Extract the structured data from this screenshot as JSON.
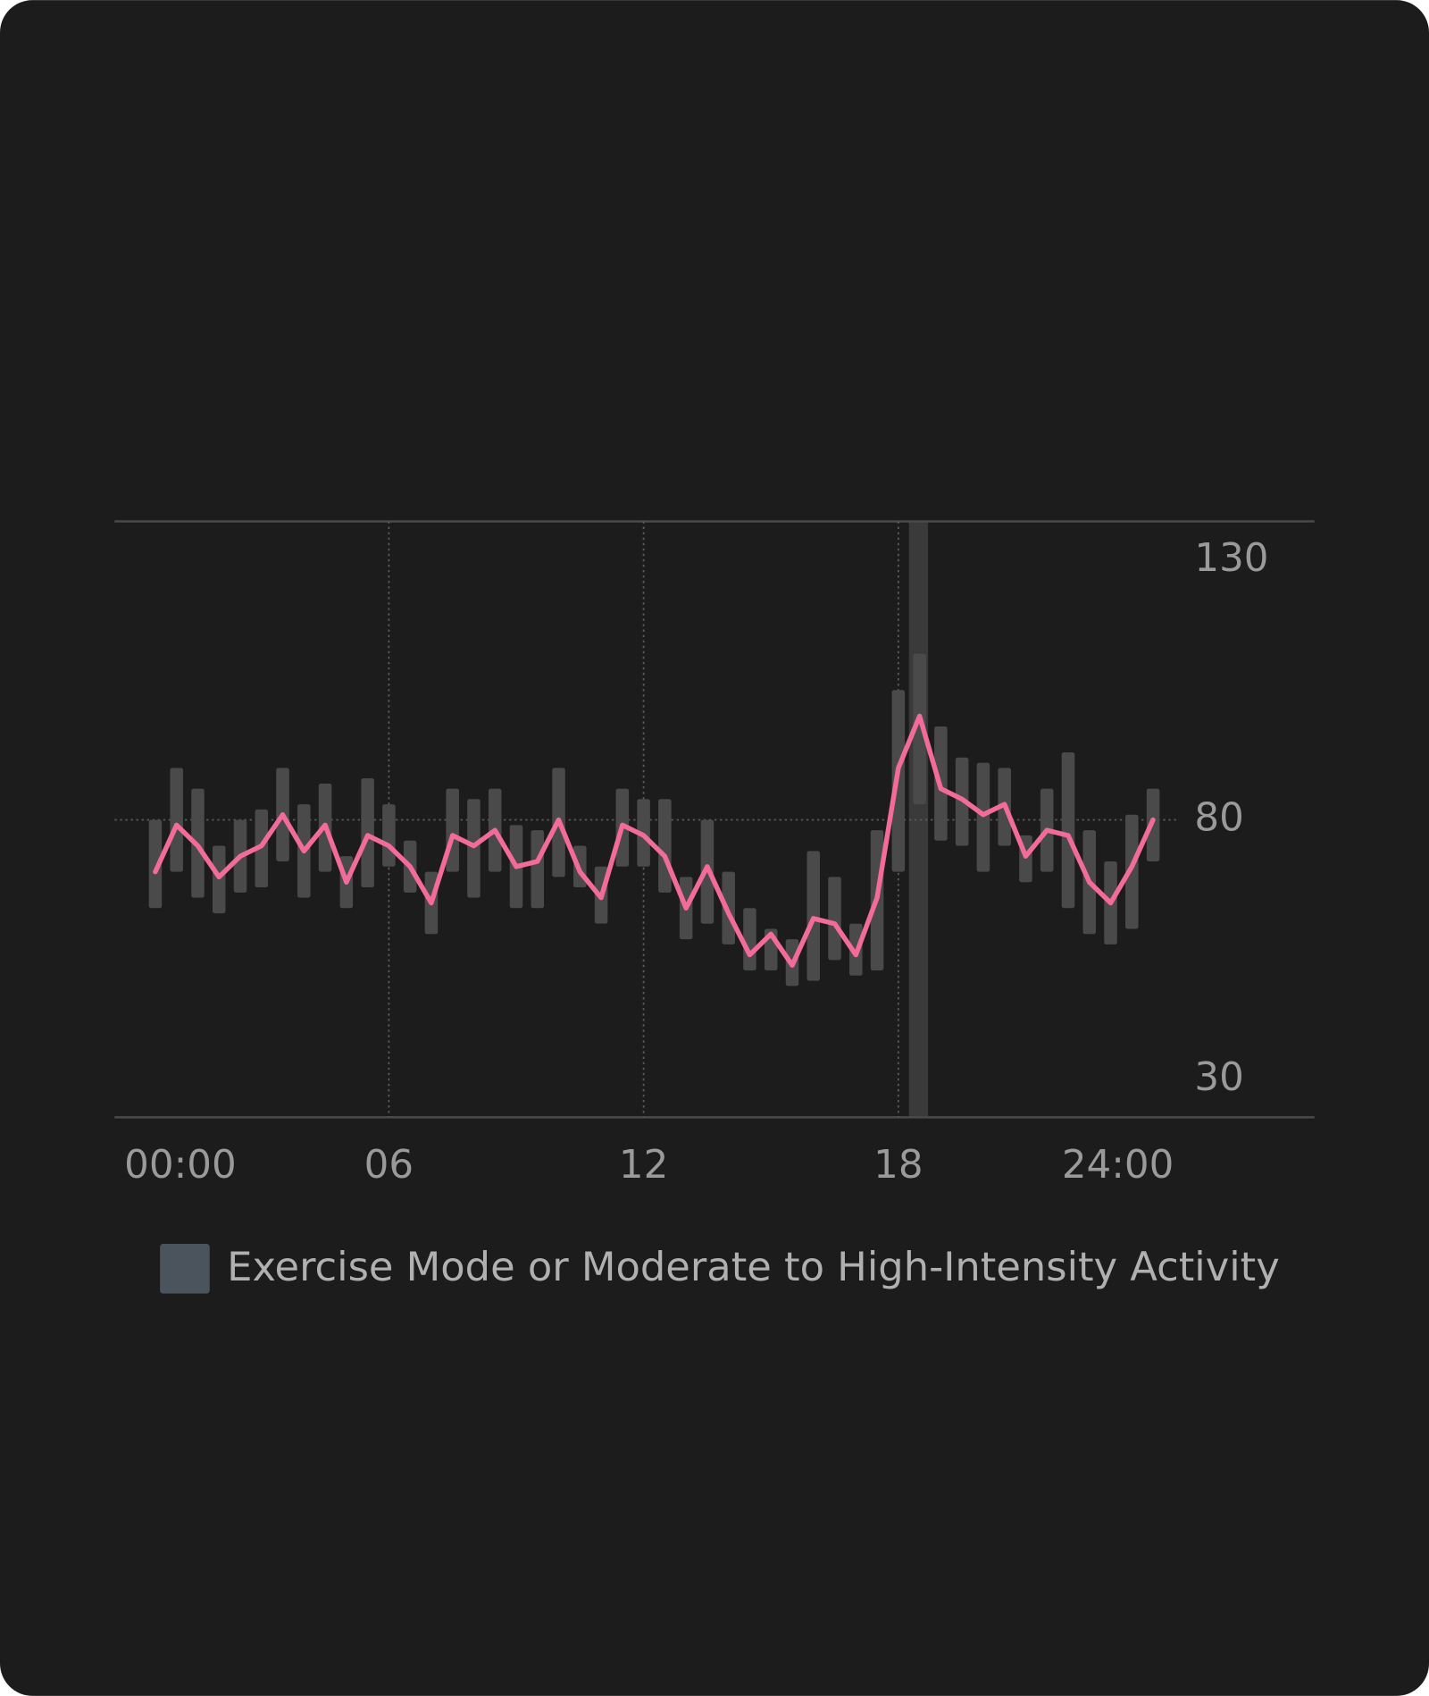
{
  "chart_data": {
    "type": "line",
    "x": [
      0.5,
      1,
      1.5,
      2,
      2.5,
      3,
      3.5,
      4,
      4.5,
      5,
      5.5,
      6,
      6.5,
      7,
      7.5,
      8,
      8.5,
      9,
      9.5,
      10,
      10.5,
      11,
      11.5,
      12,
      12.5,
      13,
      13.5,
      14,
      14.5,
      15,
      15.5,
      16,
      16.5,
      17,
      17.5,
      18,
      18.5,
      19,
      19.5,
      20,
      20.5,
      21,
      21.5,
      22,
      22.5,
      23,
      23.5,
      24
    ],
    "series": [
      {
        "color": "#f26b9b",
        "values": [
          70,
          79,
          75,
          69,
          73,
          75,
          81,
          74,
          79,
          68,
          77,
          75,
          71,
          64,
          77,
          75,
          78,
          71,
          72,
          80,
          70,
          65,
          79,
          77,
          73,
          63,
          71,
          62,
          54,
          58,
          52,
          61,
          60,
          54,
          65,
          90,
          100,
          86,
          84,
          81,
          83,
          73,
          78,
          77,
          68,
          64,
          71,
          80
        ]
      }
    ],
    "ranges": {
      "color": "#4a4a4a",
      "high": [
        80,
        90,
        86,
        75,
        80,
        82,
        90,
        83,
        87,
        73,
        88,
        83,
        76,
        70,
        86,
        84,
        86,
        79,
        78,
        90,
        75,
        71,
        86,
        84,
        84,
        69,
        80,
        70,
        63,
        59,
        57,
        74,
        69,
        60,
        78,
        105,
        112,
        98,
        92,
        91,
        90,
        77,
        86,
        93,
        78,
        72,
        81,
        86
      ],
      "low": [
        63,
        70,
        65,
        62,
        66,
        67,
        72,
        65,
        70,
        63,
        67,
        71,
        66,
        58,
        70,
        65,
        70,
        63,
        63,
        69,
        67,
        60,
        71,
        71,
        66,
        57,
        60,
        56,
        51,
        51,
        48,
        49,
        53,
        50,
        51,
        70,
        83,
        76,
        75,
        70,
        75,
        68,
        70,
        63,
        58,
        56,
        59,
        72
      ]
    },
    "exercise": {
      "color": "#3a3a3a",
      "periods": [
        [
          18.25,
          18.7
        ]
      ]
    },
    "legend": {
      "label": "Exercise Mode or Moderate to High-Intensity Activity",
      "color": "#4b535c"
    },
    "xlim": [
      -0.46,
      27.8
    ],
    "xticks": [
      {
        "value": 0,
        "label": "00:00"
      },
      {
        "value": 6,
        "label": "06"
      },
      {
        "value": 12,
        "label": "12"
      },
      {
        "value": 18,
        "label": "18"
      },
      {
        "value": 24,
        "label": "24:00"
      }
    ],
    "ylim": [
      22.7,
      137.5
    ],
    "yticks": [
      30,
      80,
      130
    ]
  }
}
